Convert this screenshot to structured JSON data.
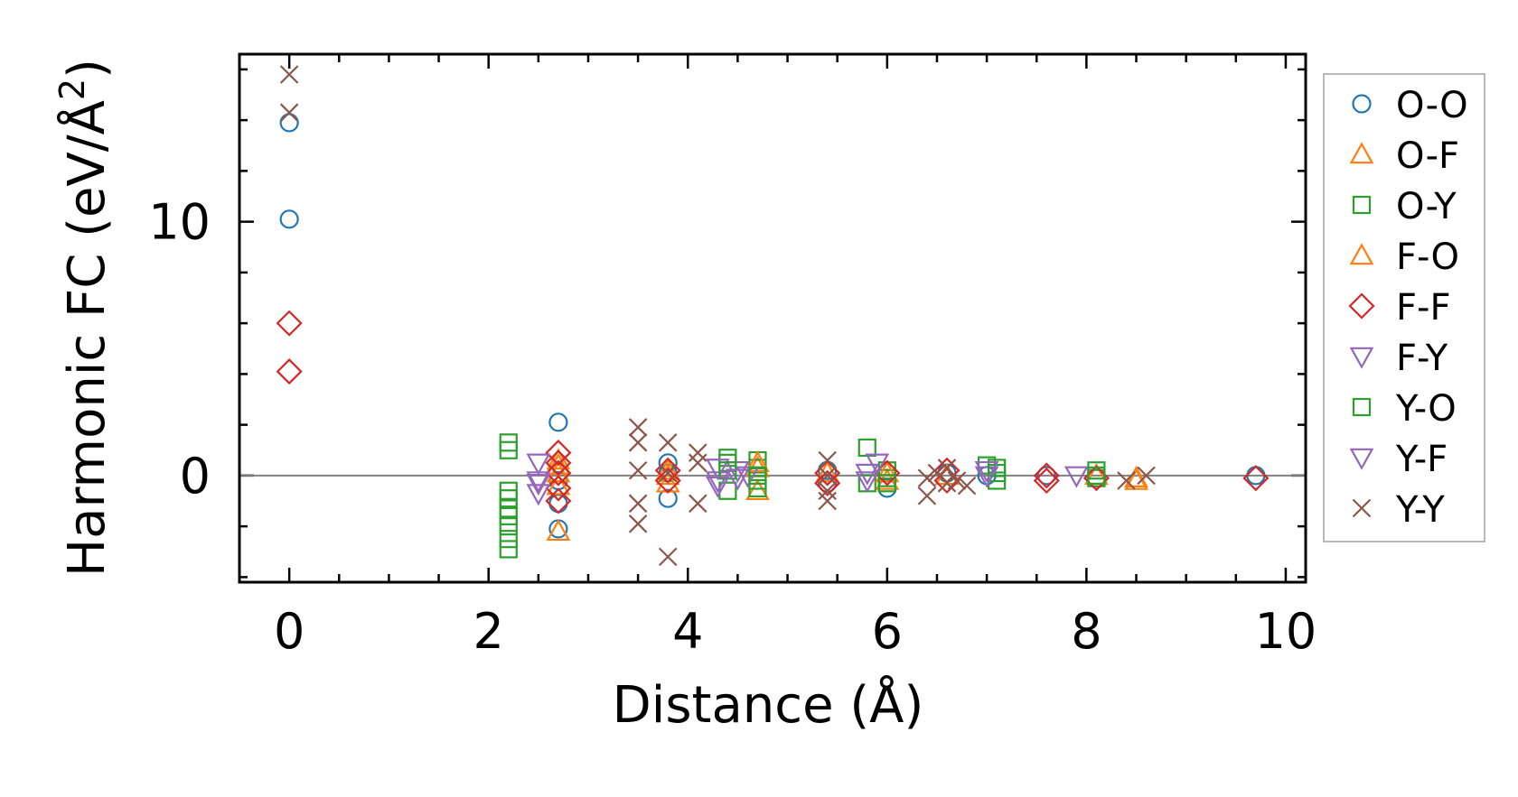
{
  "chart_data": {
    "type": "scatter",
    "title": "",
    "xlabel": "Distance (Å)",
    "ylabel_main": "Harmonic FC (eV/Å",
    "ylabel_sup": "2",
    "ylabel_close": ")",
    "xlim": [
      -0.5,
      10.2
    ],
    "ylim": [
      -4.2,
      16.6
    ],
    "xticks": [
      0,
      2,
      4,
      6,
      8,
      10
    ],
    "xtick_labels": [
      "0",
      "2",
      "4",
      "6",
      "8",
      "10"
    ],
    "yticks": [
      0,
      10
    ],
    "ytick_labels": [
      "0",
      "10"
    ],
    "zero_line": 0,
    "legend_position": "right",
    "series": [
      {
        "name": "O-O",
        "marker": "circle",
        "color": "#1f77b4",
        "points": [
          [
            0,
            13.9
          ],
          [
            0,
            10.1
          ],
          [
            2.7,
            2.1
          ],
          [
            2.7,
            -2.1
          ],
          [
            2.7,
            -1.1
          ],
          [
            2.7,
            -0.2
          ],
          [
            3.8,
            0.5
          ],
          [
            3.8,
            -0.9
          ],
          [
            3.8,
            0.1
          ],
          [
            5.4,
            0.2
          ],
          [
            5.4,
            -0.3
          ],
          [
            6.0,
            -0.5
          ],
          [
            6.6,
            0.1
          ],
          [
            7.0,
            0.0
          ],
          [
            7.6,
            0.0
          ],
          [
            8.1,
            -0.1
          ],
          [
            9.7,
            0.0
          ]
        ]
      },
      {
        "name": "O-F",
        "marker": "triangle-up",
        "color": "#ff7f0e",
        "points": [
          [
            2.7,
            -2.2
          ],
          [
            2.7,
            0.4
          ],
          [
            2.7,
            0.1
          ],
          [
            3.8,
            -0.3
          ],
          [
            3.8,
            0.2
          ],
          [
            4.7,
            -0.6
          ],
          [
            4.7,
            0.3
          ],
          [
            5.4,
            0.1
          ],
          [
            6.0,
            -0.2
          ],
          [
            6.6,
            0.0
          ],
          [
            8.1,
            0.0
          ],
          [
            8.5,
            -0.1
          ]
        ]
      },
      {
        "name": "O-Y",
        "marker": "square",
        "color": "#2ca02c",
        "points": [
          [
            2.2,
            1.3
          ],
          [
            2.2,
            1.0
          ],
          [
            2.2,
            -0.9
          ],
          [
            2.2,
            -1.3
          ],
          [
            2.2,
            -1.6
          ],
          [
            2.2,
            -2.0
          ],
          [
            2.2,
            -2.5
          ],
          [
            2.2,
            -2.9
          ],
          [
            4.4,
            0.7
          ],
          [
            4.4,
            0.5
          ],
          [
            4.4,
            -0.6
          ],
          [
            4.7,
            0.6
          ],
          [
            4.7,
            0.3
          ],
          [
            4.7,
            -0.2
          ],
          [
            4.7,
            -0.5
          ],
          [
            5.8,
            1.1
          ],
          [
            5.8,
            -0.3
          ],
          [
            6.0,
            0.2
          ],
          [
            6.0,
            -0.1
          ],
          [
            7.0,
            0.4
          ],
          [
            7.1,
            -0.2
          ],
          [
            7.1,
            0.1
          ],
          [
            8.1,
            0.2
          ],
          [
            8.1,
            -0.1
          ]
        ]
      },
      {
        "name": "F-O",
        "marker": "triangle-up",
        "color": "#ff7f0e",
        "points": [
          [
            2.7,
            0.6
          ],
          [
            2.7,
            -0.4
          ],
          [
            3.8,
            0.0
          ],
          [
            4.7,
            0.5
          ],
          [
            6.0,
            0.1
          ],
          [
            8.5,
            -0.2
          ]
        ]
      },
      {
        "name": "F-F",
        "marker": "diamond",
        "color": "#d62728",
        "points": [
          [
            0,
            6.0
          ],
          [
            0,
            4.1
          ],
          [
            2.7,
            0.9
          ],
          [
            2.7,
            0.5
          ],
          [
            2.7,
            0.1
          ],
          [
            2.7,
            -0.5
          ],
          [
            2.7,
            -1.0
          ],
          [
            3.8,
            0.2
          ],
          [
            3.8,
            -0.2
          ],
          [
            5.4,
            0.1
          ],
          [
            5.4,
            -0.3
          ],
          [
            6.0,
            0.1
          ],
          [
            6.6,
            0.2
          ],
          [
            6.6,
            -0.2
          ],
          [
            7.6,
            0.0
          ],
          [
            7.6,
            -0.2
          ],
          [
            8.1,
            -0.1
          ],
          [
            9.7,
            -0.1
          ]
        ]
      },
      {
        "name": "F-Y",
        "marker": "triangle-down",
        "color": "#9467bd",
        "points": [
          [
            2.5,
            0.5
          ],
          [
            2.5,
            -0.3
          ],
          [
            2.5,
            -0.7
          ],
          [
            4.3,
            0.3
          ],
          [
            4.3,
            -0.2
          ],
          [
            4.5,
            0.2
          ],
          [
            4.6,
            0.0
          ],
          [
            5.8,
            0.1
          ],
          [
            5.9,
            0.5
          ],
          [
            7.0,
            0.0
          ],
          [
            7.9,
            0.0
          ]
        ]
      },
      {
        "name": "Y-O",
        "marker": "square",
        "color": "#2ca02c",
        "points": [
          [
            2.2,
            -0.6
          ],
          [
            4.4,
            0.2
          ],
          [
            4.7,
            0.0
          ],
          [
            6.0,
            -0.3
          ],
          [
            7.1,
            0.3
          ],
          [
            8.1,
            0.0
          ]
        ]
      },
      {
        "name": "Y-F",
        "marker": "triangle-down",
        "color": "#9467bd",
        "points": [
          [
            2.5,
            -0.2
          ],
          [
            4.3,
            -0.4
          ],
          [
            4.5,
            -0.1
          ],
          [
            5.8,
            -0.2
          ],
          [
            7.0,
            0.2
          ]
        ]
      },
      {
        "name": "Y-Y",
        "marker": "x",
        "color": "#8c564b",
        "points": [
          [
            0,
            15.8
          ],
          [
            0,
            14.3
          ],
          [
            3.5,
            1.9
          ],
          [
            3.5,
            1.3
          ],
          [
            3.5,
            0.2
          ],
          [
            3.5,
            -1.1
          ],
          [
            3.5,
            -1.9
          ],
          [
            3.8,
            1.3
          ],
          [
            3.8,
            0.1
          ],
          [
            3.8,
            -3.2
          ],
          [
            4.1,
            0.9
          ],
          [
            4.1,
            0.5
          ],
          [
            4.1,
            -1.1
          ],
          [
            5.4,
            0.6
          ],
          [
            5.4,
            0.0
          ],
          [
            5.4,
            -0.6
          ],
          [
            5.4,
            -1.0
          ],
          [
            6.4,
            -0.1
          ],
          [
            6.4,
            -0.8
          ],
          [
            6.5,
            0.1
          ],
          [
            6.6,
            0.3
          ],
          [
            6.6,
            -0.3
          ],
          [
            6.7,
            -0.2
          ],
          [
            6.8,
            -0.4
          ],
          [
            8.4,
            -0.2
          ],
          [
            8.6,
            0.0
          ]
        ]
      }
    ]
  }
}
